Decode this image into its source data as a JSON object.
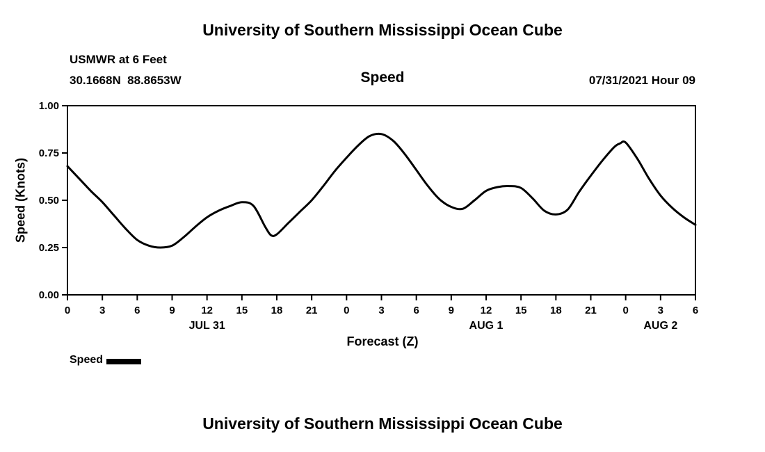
{
  "page": {
    "top_title": "University of Southern Mississippi Ocean Cube",
    "bottom_title": "University of Southern Mississippi Ocean Cube"
  },
  "header": {
    "station": "USMWR at 6 Feet",
    "coords": "30.1668N  88.8653W",
    "chart_title": "Speed",
    "datetime": "07/31/2021 Hour 09"
  },
  "legend": {
    "label": "Speed",
    "swatch_color": "#000000"
  },
  "chart_data": {
    "type": "line",
    "title": "Speed",
    "xlabel": "Forecast (Z)",
    "ylabel": "Speed (Knots)",
    "xlim": [
      0,
      54
    ],
    "ylim": [
      0.0,
      1.0
    ],
    "grid": false,
    "legend_position": "bottom-left",
    "line_color": "#000000",
    "y_ticks": [
      "0.00",
      "0.25",
      "0.50",
      "0.75",
      "1.00"
    ],
    "x_ticks": [
      {
        "hour": 0,
        "label": "0"
      },
      {
        "hour": 3,
        "label": "3"
      },
      {
        "hour": 6,
        "label": "6"
      },
      {
        "hour": 9,
        "label": "9"
      },
      {
        "hour": 12,
        "label": "12"
      },
      {
        "hour": 15,
        "label": "15"
      },
      {
        "hour": 18,
        "label": "18"
      },
      {
        "hour": 21,
        "label": "21"
      },
      {
        "hour": 24,
        "label": "0"
      },
      {
        "hour": 27,
        "label": "3"
      },
      {
        "hour": 30,
        "label": "6"
      },
      {
        "hour": 33,
        "label": "9"
      },
      {
        "hour": 36,
        "label": "12"
      },
      {
        "hour": 39,
        "label": "15"
      },
      {
        "hour": 42,
        "label": "18"
      },
      {
        "hour": 45,
        "label": "21"
      },
      {
        "hour": 48,
        "label": "0"
      },
      {
        "hour": 51,
        "label": "3"
      },
      {
        "hour": 54,
        "label": "6"
      }
    ],
    "day_labels": [
      {
        "hour": 12,
        "label": "JUL 31"
      },
      {
        "hour": 36,
        "label": "AUG 1"
      },
      {
        "hour": 51,
        "label": "AUG 2"
      }
    ],
    "series": [
      {
        "name": "Speed",
        "color": "#000000",
        "x": [
          0,
          1,
          2,
          3,
          4,
          5,
          6,
          7,
          8,
          9,
          10,
          11,
          12,
          13,
          14,
          15,
          16,
          17,
          17.5,
          18,
          19,
          20,
          21,
          22,
          23,
          24,
          25,
          26,
          27,
          28,
          29,
          30,
          31,
          32,
          33,
          34,
          35,
          36,
          37,
          38,
          39,
          40,
          41,
          42,
          43,
          44,
          45,
          46,
          47,
          47.5,
          48,
          49,
          50,
          51,
          52,
          53,
          54
        ],
        "y": [
          0.68,
          0.615,
          0.55,
          0.49,
          0.42,
          0.35,
          0.29,
          0.26,
          0.25,
          0.26,
          0.305,
          0.36,
          0.41,
          0.445,
          0.47,
          0.49,
          0.47,
          0.36,
          0.315,
          0.32,
          0.38,
          0.44,
          0.5,
          0.575,
          0.655,
          0.725,
          0.79,
          0.84,
          0.85,
          0.815,
          0.745,
          0.66,
          0.575,
          0.505,
          0.465,
          0.455,
          0.5,
          0.55,
          0.57,
          0.575,
          0.565,
          0.51,
          0.445,
          0.425,
          0.45,
          0.545,
          0.63,
          0.71,
          0.78,
          0.8,
          0.805,
          0.72,
          0.615,
          0.525,
          0.46,
          0.41,
          0.37
        ]
      }
    ]
  }
}
